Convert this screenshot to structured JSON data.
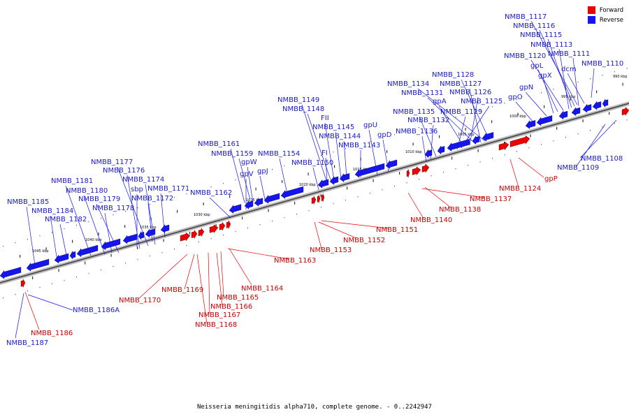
{
  "title": "Neisseria meningitidis alpha710, complete genome. - 0..2242947",
  "legend": {
    "forward": {
      "label": "Forward",
      "color": "#ee0000"
    },
    "reverse": {
      "label": "Reverse",
      "color": "#1515ee"
    }
  },
  "ticks": [
    "995 kbp",
    "1000 kbp",
    "1005 kbp",
    "1010 kbp",
    "1015 kbp",
    "1020 kbp",
    "1025 kbp",
    "1030 kbp",
    "1035 kbp",
    "1040 kbp",
    "1045 kbp",
    "990 kbp"
  ],
  "reverse_labels": [
    "NMBB_1117",
    "NMBB_1116",
    "NMBB_1115",
    "NMBB_1113",
    "NMBB_1120",
    "NMBB_1111",
    "gpL",
    "NMBB_1110",
    "dcm",
    "gpX",
    "gpN",
    "gpO",
    "NMBB_1128",
    "NMBB_1134",
    "NMBB_1127",
    "NMBB_1131",
    "NMBB_1126",
    "gpA",
    "NMBB_1125",
    "NMBB_1135",
    "NMBB_1129",
    "NMBB_1132",
    "NMBB_1136",
    "NMBB_1149",
    "NMBB_1148",
    "FII",
    "NMBB_1145",
    "gpU",
    "NMBB_1144",
    "gpD",
    "NMBB_1143",
    "FI",
    "NMBB_1150",
    "NMBB_1161",
    "NMBB_1159",
    "NMBB_1154",
    "gpW",
    "gpV",
    "gpJ",
    "NMBB_1162",
    "NMBB_1177",
    "NMBB_1176",
    "NMBB_1181",
    "NMBB_1174",
    "sbp",
    "NMBB_1171",
    "NMBB_1180",
    "NMBB_1179",
    "NMBB_1172",
    "NMBB_1185",
    "NMBB_1178",
    "NMBB_1184",
    "NMBB_1182",
    "NMBB_1108",
    "NMBB_1109",
    "NMBB_1186A",
    "NMBB_1187"
  ],
  "forward_labels": [
    "gpP",
    "NMBB_1124",
    "NMBB_1137",
    "NMBB_1138",
    "NMBB_1140",
    "NMBB_1151",
    "NMBB_1152",
    "NMBB_1153",
    "NMBB_1163",
    "NMBB_1164",
    "NMBB_1169",
    "NMBB_1165",
    "NMBB_1170",
    "NMBB_1166",
    "NMBB_1167",
    "NMBB_1168",
    "NMBB_1186"
  ]
}
